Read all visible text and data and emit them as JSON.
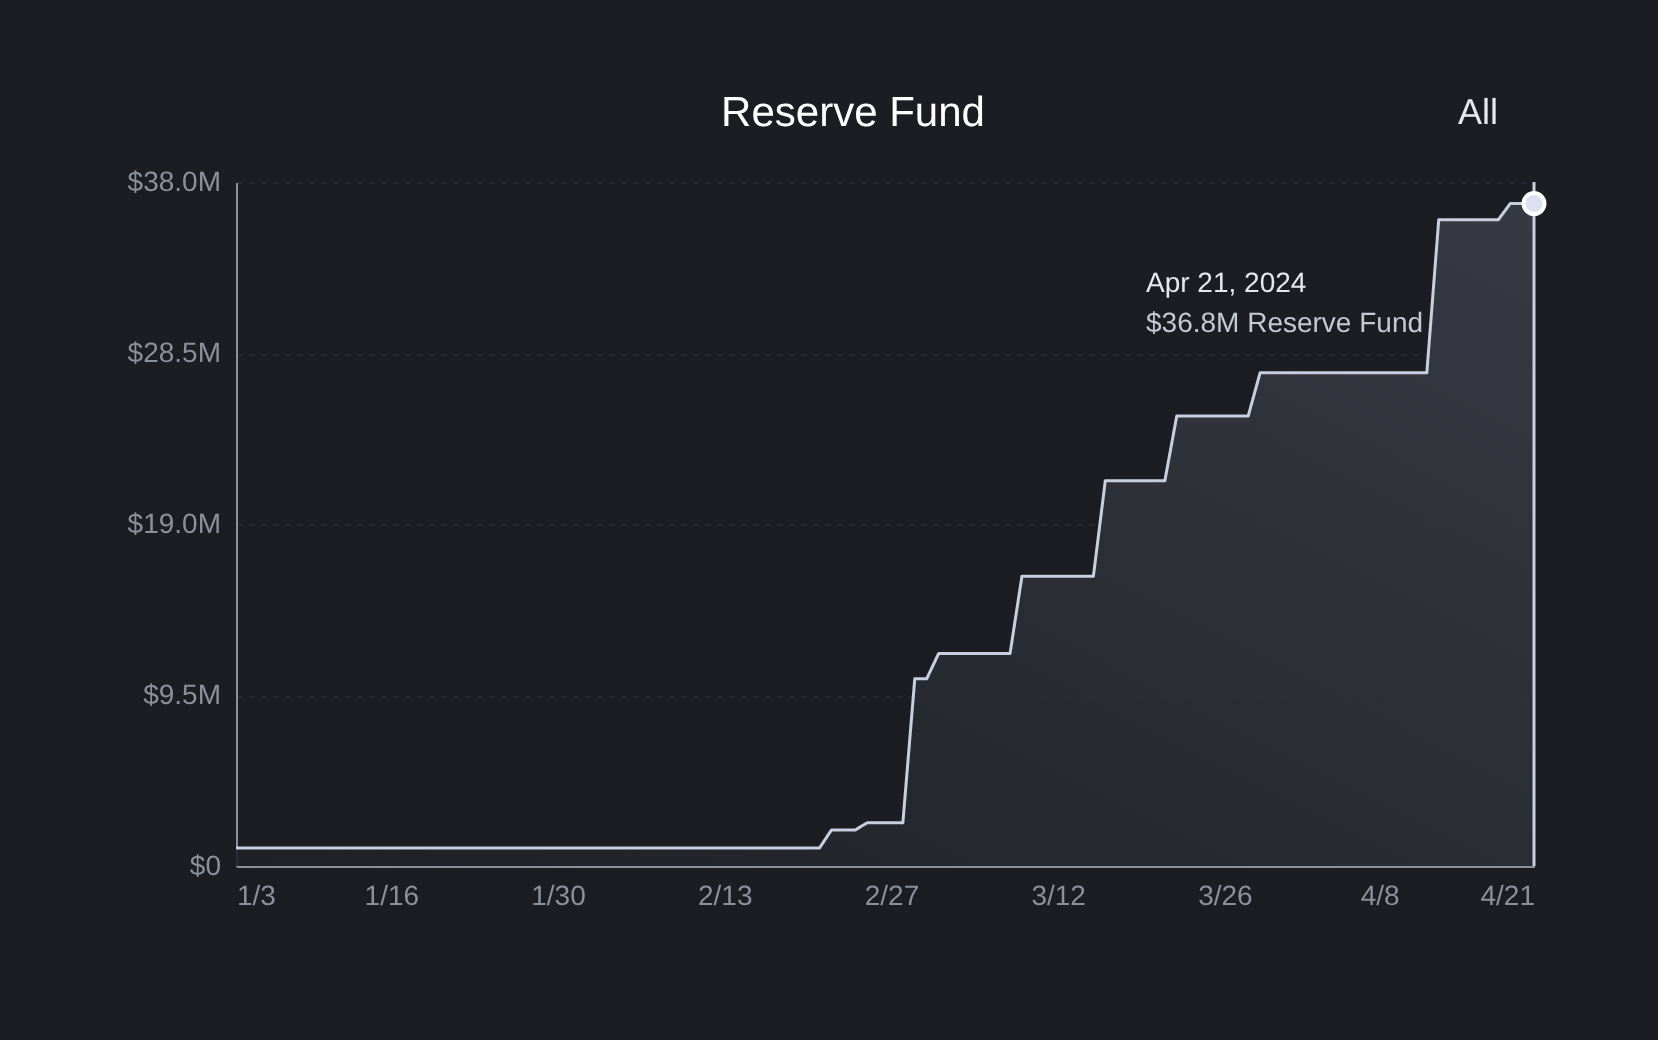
{
  "chart_data": {
    "type": "area",
    "title": "Reserve Fund",
    "x": [
      "2024-01-03",
      "2024-02-21",
      "2024-02-22",
      "2024-02-24",
      "2024-02-25",
      "2024-02-28",
      "2024-02-29",
      "2024-03-01",
      "2024-03-02",
      "2024-03-08",
      "2024-03-09",
      "2024-03-15",
      "2024-03-16",
      "2024-03-21",
      "2024-03-22",
      "2024-03-28",
      "2024-03-29",
      "2024-04-04",
      "2024-04-12",
      "2024-04-13",
      "2024-04-16",
      "2024-04-18",
      "2024-04-19",
      "2024-04-21"
    ],
    "series": [
      {
        "color": "#c9cee0",
        "values": [
          1.0,
          1.0,
          2.0,
          2.0,
          2.4,
          2.4,
          10.4,
          10.4,
          11.8,
          11.8,
          16.1,
          16.1,
          21.4,
          21.4,
          25.0,
          25.0,
          27.4,
          27.4,
          27.4,
          35.9,
          35.9,
          35.9,
          36.8,
          36.8
        ]
      },
      {
        "type": "scatter",
        "marker": "circle",
        "color": "#dde0f0",
        "x": [
          "2024-04-21"
        ],
        "values": [
          36.8
        ]
      }
    ],
    "xlim": [
      "2024-01-03",
      "2024-04-21"
    ],
    "xticks": [
      {
        "value": "2024-01-03",
        "label": "1/3"
      },
      {
        "value": "2024-01-16",
        "label": "1/16"
      },
      {
        "value": "2024-01-30",
        "label": "1/30"
      },
      {
        "value": "2024-02-13",
        "label": "2/13"
      },
      {
        "value": "2024-02-27",
        "label": "2/27"
      },
      {
        "value": "2024-03-12",
        "label": "3/12"
      },
      {
        "value": "2024-03-26",
        "label": "3/26"
      },
      {
        "value": "2024-04-08",
        "label": "4/8"
      },
      {
        "value": "2024-04-21",
        "label": "4/21"
      }
    ],
    "ylim": [
      0,
      38
    ],
    "yticks": [
      {
        "value": 0,
        "label": "$0"
      },
      {
        "value": 9.5,
        "label": "$9.5M"
      },
      {
        "value": 19,
        "label": "$19.0M"
      },
      {
        "value": 28.5,
        "label": "$28.5M"
      },
      {
        "value": 38,
        "label": "$38.0M"
      }
    ],
    "ref_lines": [
      {
        "axis": "x",
        "value": "2024-04-21",
        "label": null,
        "color": "#c9cee0"
      }
    ],
    "annotations": [
      "Apr 21, 2024",
      "$36.8M     Reserve Fund",
      "All"
    ],
    "grid": "y"
  }
}
